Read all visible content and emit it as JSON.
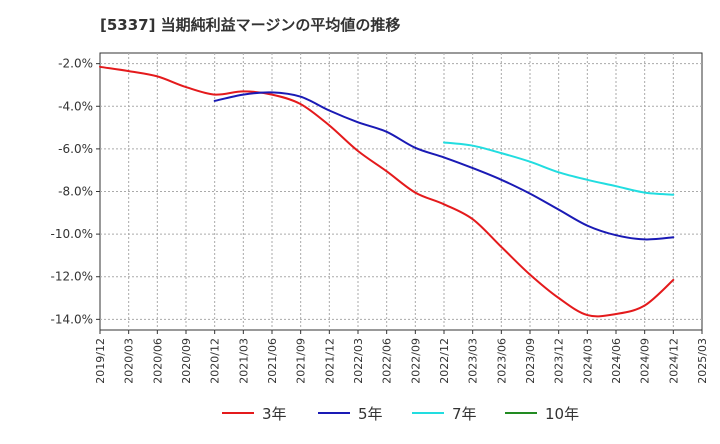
{
  "chart_data": {
    "type": "line",
    "title": "[5337]  当期純利益マージンの平均値の推移",
    "xlabel": "",
    "ylabel": "",
    "y_unit": "%",
    "ylim": [
      -14.5,
      -1.5
    ],
    "yticks": [
      -2.0,
      -4.0,
      -6.0,
      -8.0,
      -10.0,
      -12.0,
      -14.0
    ],
    "ytick_labels": [
      "-2.0%",
      "-4.0%",
      "-6.0%",
      "-8.0%",
      "-10.0%",
      "-12.0%",
      "-14.0%"
    ],
    "x_tick_labels": [
      "2019/12",
      "2020/03",
      "2020/06",
      "2020/09",
      "2020/12",
      "2021/03",
      "2021/06",
      "2021/09",
      "2021/12",
      "2022/03",
      "2022/06",
      "2022/09",
      "2022/12",
      "2023/03",
      "2023/06",
      "2023/09",
      "2023/12",
      "2024/03",
      "2024/06",
      "2024/09",
      "2024/12",
      "2025/03"
    ],
    "grid": true,
    "legend_position": "bottom",
    "series": [
      {
        "name": "3年",
        "color": "#e41a1c",
        "x": [
          "2019/12",
          "2020/03",
          "2020/06",
          "2020/09",
          "2020/12",
          "2021/03",
          "2021/06",
          "2021/09",
          "2021/12",
          "2022/03",
          "2022/06",
          "2022/09",
          "2022/12",
          "2023/03",
          "2023/06",
          "2023/09",
          "2023/12",
          "2024/03",
          "2024/06",
          "2024/09",
          "2024/12"
        ],
        "values": [
          -2.15,
          -2.35,
          -2.6,
          -3.1,
          -3.45,
          -3.3,
          -3.45,
          -3.9,
          -4.9,
          -6.1,
          -7.05,
          -8.05,
          -8.6,
          -9.3,
          -10.6,
          -11.9,
          -13.0,
          -13.8,
          -13.75,
          -13.35,
          -12.15
        ]
      },
      {
        "name": "5年",
        "color": "#1a1ab5",
        "x": [
          "2020/12",
          "2021/03",
          "2021/06",
          "2021/09",
          "2021/12",
          "2022/03",
          "2022/06",
          "2022/09",
          "2022/12",
          "2023/03",
          "2023/06",
          "2023/09",
          "2023/12",
          "2024/03",
          "2024/06",
          "2024/09",
          "2024/12"
        ],
        "values": [
          -3.75,
          -3.45,
          -3.35,
          -3.55,
          -4.2,
          -4.75,
          -5.2,
          -5.95,
          -6.4,
          -6.9,
          -7.45,
          -8.1,
          -8.85,
          -9.6,
          -10.05,
          -10.25,
          -10.15
        ]
      },
      {
        "name": "7年",
        "color": "#22dde0",
        "x": [
          "2022/12",
          "2023/03",
          "2023/06",
          "2023/09",
          "2023/12",
          "2024/03",
          "2024/06",
          "2024/09",
          "2024/12"
        ],
        "values": [
          -5.7,
          -5.85,
          -6.2,
          -6.6,
          -7.1,
          -7.45,
          -7.75,
          -8.05,
          -8.15
        ]
      },
      {
        "name": "10年",
        "color": "#228b22",
        "x": [],
        "values": []
      }
    ]
  }
}
